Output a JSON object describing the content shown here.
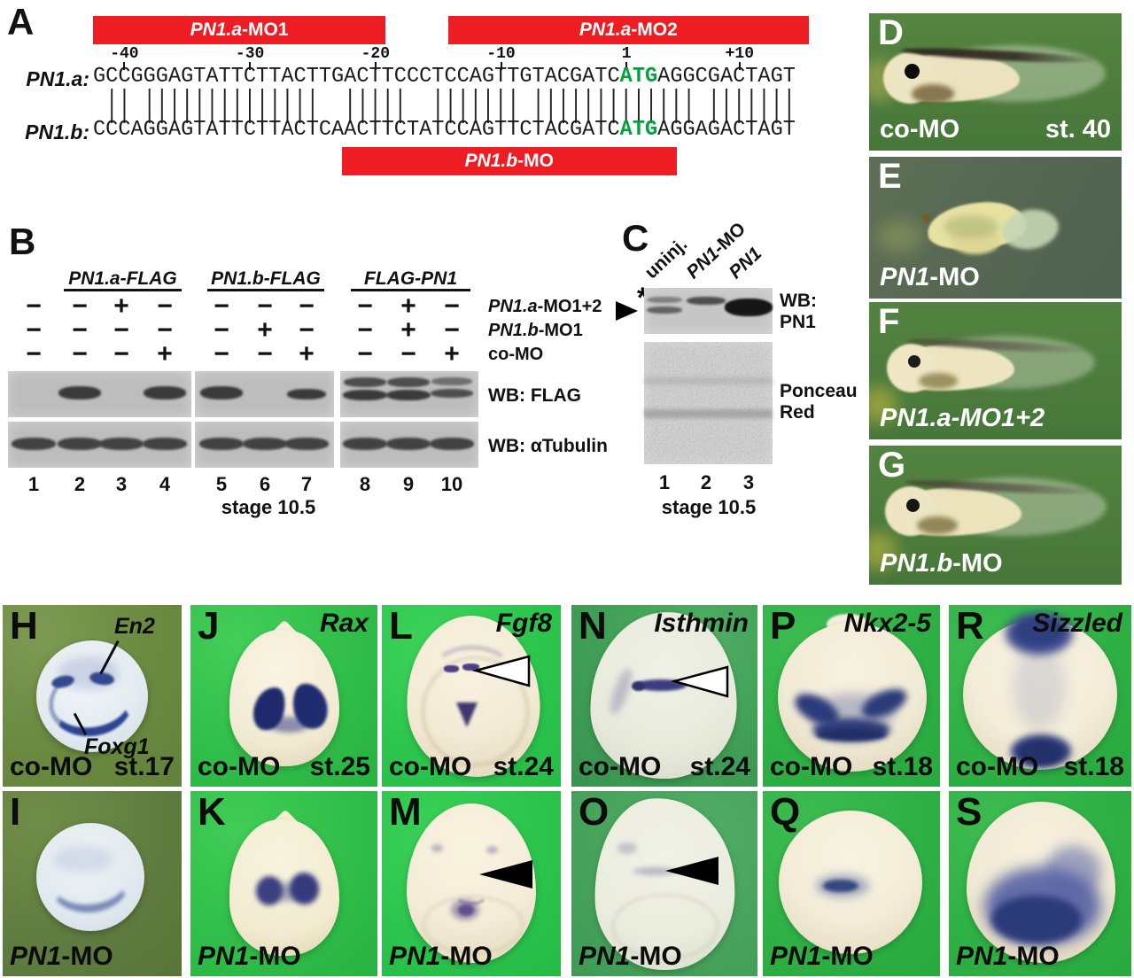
{
  "panel_a": {
    "letter": "A",
    "bars": [
      {
        "id": "mo1",
        "label_i": "PN1.a",
        "label_r": "-MO1",
        "start": 1,
        "end": 23.3
      },
      {
        "id": "mo2",
        "label_i": "PN1.a",
        "label_r": "-MO2",
        "start": 29.3,
        "end": 57
      },
      {
        "id": "bmo",
        "label_i": "PN1.b",
        "label_r": "-MO",
        "start": 20.8,
        "end": 46.5
      }
    ],
    "ticks": [
      {
        "label": "-40",
        "char": 3
      },
      {
        "label": "-30",
        "char": 13
      },
      {
        "label": "-20",
        "char": 23
      },
      {
        "label": "-10",
        "char": 33
      },
      {
        "label": "1",
        "char": 43
      },
      {
        "label": "+10",
        "char": 52
      }
    ],
    "rows": [
      {
        "name": "PN1.a:",
        "seq": "GCCGGGAGTATTCTTACTTGACTTCCCTCCAGTTGTACGATCATGAGGCGACTAGT"
      },
      {
        "name": "PN1.b:",
        "seq": "CCCAGGAGTATTCTTACTCAACTTCTATCCAGTTCTACGATCATGAGGAGACTAGT"
      }
    ],
    "atg": {
      "start": 43,
      "len": 3,
      "color": "#00a33d"
    }
  },
  "panel_b": {
    "letter": "B",
    "groups": [
      "PN1.a-FLAG",
      "PN1.b-FLAG",
      "FLAG-PN1"
    ],
    "sign_rows": [
      {
        "label_i": "PN1.a",
        "label_r": "-MO1+2",
        "signs": [
          "−",
          "−",
          "+",
          "−",
          "−",
          "−",
          "−",
          "−",
          "+",
          "−"
        ]
      },
      {
        "label_i": "PN1.b",
        "label_r": "-MO1",
        "signs": [
          "−",
          "−",
          "−",
          "−",
          "−",
          "+",
          "−",
          "−",
          "+",
          "−"
        ]
      },
      {
        "label_i": "",
        "label_r": "co-MO",
        "signs": [
          "−",
          "−",
          "−",
          "+",
          "−",
          "−",
          "+",
          "−",
          "−",
          "+"
        ]
      }
    ],
    "blots": [
      {
        "label": "WB: FLAG",
        "bands": [
          "none",
          "strong",
          "none",
          "strong",
          "strong",
          "none",
          "medium",
          "doublet",
          "doublet",
          "doublet-faint"
        ]
      },
      {
        "label": "WB: αTubulin",
        "bands": [
          "band",
          "band",
          "band",
          "band",
          "band",
          "band",
          "band",
          "band",
          "band",
          "band"
        ]
      }
    ],
    "lane_numbers": [
      "1",
      "2",
      "3",
      "4",
      "5",
      "6",
      "7",
      "8",
      "9",
      "10"
    ],
    "stage": "stage 10.5"
  },
  "panel_c": {
    "letter": "C",
    "lanes": [
      {
        "i": "",
        "r": "uninj."
      },
      {
        "i": "PN1",
        "r": "-MO"
      },
      {
        "i": "PN1",
        "r": ""
      }
    ],
    "band_types": [
      "faint-doublet",
      "single",
      "intense"
    ],
    "asterisk": "*",
    "blot1_label_1": "WB:",
    "blot1_label_2": "PN1",
    "blot2_label_1": "Ponceau",
    "blot2_label_2": "Red",
    "lane_numbers": [
      "1",
      "2",
      "3"
    ],
    "stage": "stage 10.5"
  },
  "photo_panels": {
    "D": {
      "letter": "D",
      "cap_i": "",
      "cap_r": "co-MO",
      "stage": "st. 40"
    },
    "E": {
      "letter": "E",
      "cap_i": "PN1",
      "cap_r": "-MO"
    },
    "F": {
      "letter": "F",
      "cap_i": "PN1.a-MO1+2",
      "cap_r": ""
    },
    "G": {
      "letter": "G",
      "cap_i": "PN1.b",
      "cap_r": "-MO"
    },
    "H": {
      "letter": "H",
      "cap_i": "",
      "cap_r": "co-MO",
      "stage": "st.17",
      "ann1": "En2",
      "ann2": "Foxg1"
    },
    "I": {
      "letter": "I",
      "cap_i": "PN1",
      "cap_r": "-MO"
    },
    "J": {
      "letter": "J",
      "gene": "Rax",
      "cap_i": "",
      "cap_r": "co-MO",
      "stage": "st.25"
    },
    "K": {
      "letter": "K",
      "cap_i": "PN1",
      "cap_r": "-MO"
    },
    "L": {
      "letter": "L",
      "gene": "Fgf8",
      "cap_i": "",
      "cap_r": "co-MO",
      "stage": "st.24"
    },
    "M": {
      "letter": "M",
      "cap_i": "PN1",
      "cap_r": "-MO"
    },
    "N": {
      "letter": "N",
      "gene": "Isthmin",
      "cap_i": "",
      "cap_r": "co-MO",
      "stage": "st.24"
    },
    "O": {
      "letter": "O",
      "cap_i": "PN1",
      "cap_r": "-MO"
    },
    "P": {
      "letter": "P",
      "gene": "Nkx2-5",
      "cap_i": "",
      "cap_r": "co-MO",
      "stage": "st.18"
    },
    "Q": {
      "letter": "Q",
      "cap_i": "PN1",
      "cap_r": "-MO"
    },
    "R": {
      "letter": "R",
      "gene": "Sizzled",
      "cap_i": "",
      "cap_r": "co-MO",
      "stage": "st.18"
    },
    "S": {
      "letter": "S",
      "cap_i": "PN1",
      "cap_r": "-MO"
    }
  },
  "colors": {
    "mo_bar_red": "#ee1c23",
    "atg_green": "#00a33d",
    "stain_blue": "#2c3b7a",
    "blot_gray": "#bdbdbd"
  }
}
